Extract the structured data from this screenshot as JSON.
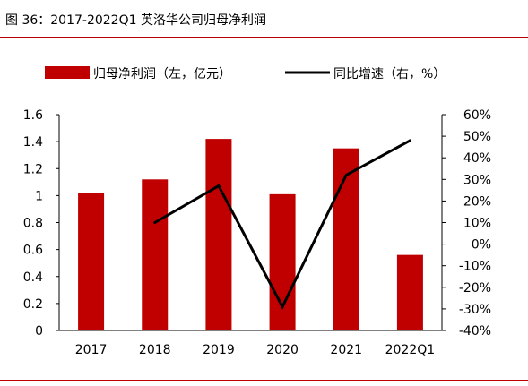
{
  "figure": {
    "title": "图 36：2017-2022Q1 英洛华公司归母净利润"
  },
  "colors": {
    "bar": "#c00000",
    "line": "#000000",
    "rule": "#c00000",
    "axis": "#000000"
  },
  "chart_data": {
    "type": "bar",
    "categories": [
      "2017",
      "2018",
      "2019",
      "2020",
      "2021",
      "2022Q1"
    ],
    "series": [
      {
        "name": "归母净利润（左，亿元）",
        "type": "bar",
        "axis": "left",
        "values": [
          1.02,
          1.12,
          1.42,
          1.01,
          1.35,
          0.56
        ]
      },
      {
        "name": "同比增速（右，%）",
        "type": "line",
        "axis": "right",
        "values": [
          null,
          10,
          27,
          -29,
          32,
          48
        ]
      }
    ],
    "y_left": {
      "ylim": [
        0,
        1.6
      ],
      "ticks": [
        "1.6",
        "1.4",
        "1.2",
        "1",
        "0.8",
        "0.6",
        "0.4",
        "0.2",
        "0"
      ]
    },
    "y_right": {
      "ylim": [
        -40,
        60
      ],
      "ticks": [
        "60%",
        "50%",
        "40%",
        "30%",
        "20%",
        "10%",
        "0%",
        "-10%",
        "-20%",
        "-30%",
        "-40%"
      ]
    },
    "legend_position": "top",
    "grid": false
  }
}
